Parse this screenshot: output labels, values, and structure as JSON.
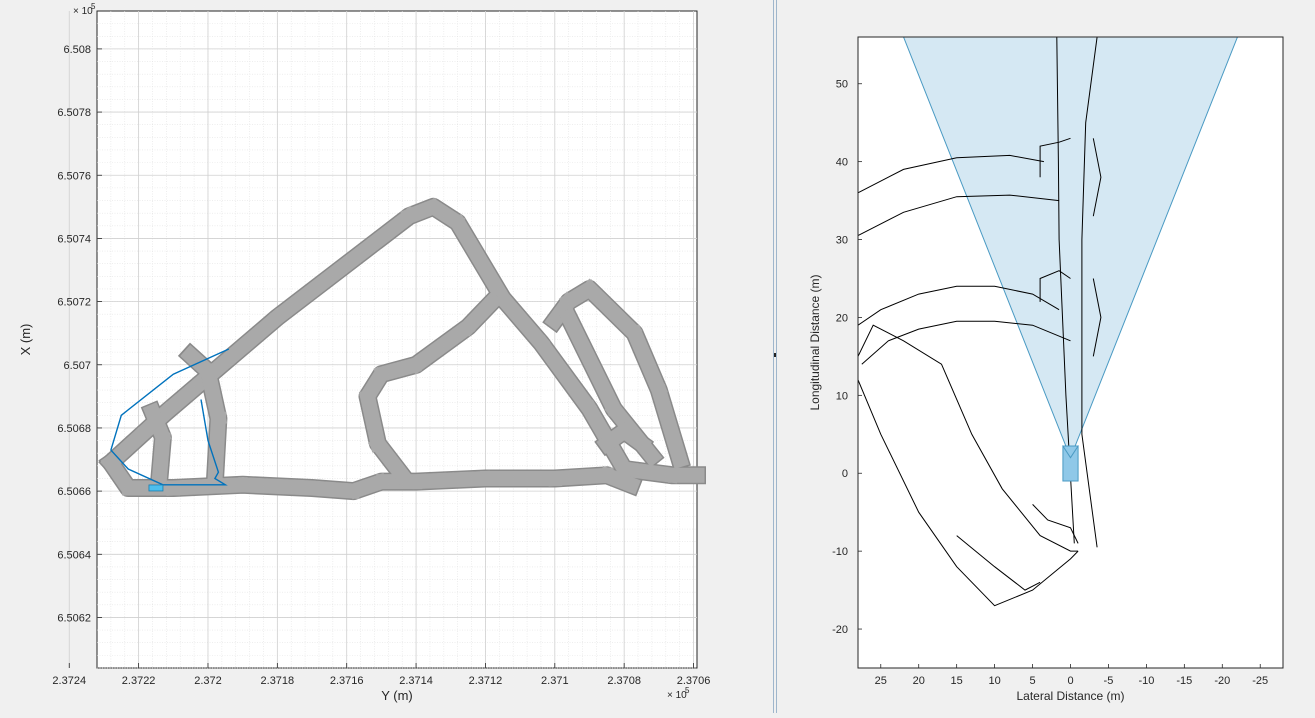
{
  "chart_data": [
    {
      "type": "map",
      "xlabel": "Y (m)",
      "ylabel": "X (m)",
      "x_exponent_label": "× 10",
      "x_exponent_power": "5",
      "y_exponent_label": "× 10",
      "y_exponent_power": "5",
      "x_reversed": true,
      "xlim": [
        2.37232,
        2.37059
      ],
      "ylim": [
        6.50604,
        6.50812
      ],
      "xticks": [
        {
          "value": 2.3724,
          "label": "2.3724"
        },
        {
          "value": 2.3722,
          "label": "2.3722"
        },
        {
          "value": 2.372,
          "label": "2.372"
        },
        {
          "value": 2.3718,
          "label": "2.3718"
        },
        {
          "value": 2.3716,
          "label": "2.3716"
        },
        {
          "value": 2.3714,
          "label": "2.3714"
        },
        {
          "value": 2.3712,
          "label": "2.3712"
        },
        {
          "value": 2.371,
          "label": "2.371"
        },
        {
          "value": 2.3708,
          "label": "2.3708"
        },
        {
          "value": 2.3706,
          "label": "2.3706"
        }
      ],
      "yticks": [
        {
          "value": 6.5062,
          "label": "6.5062"
        },
        {
          "value": 6.5064,
          "label": "6.5064"
        },
        {
          "value": 6.5066,
          "label": "6.5066"
        },
        {
          "value": 6.5068,
          "label": "6.5068"
        },
        {
          "value": 6.507,
          "label": "6.507"
        },
        {
          "value": 6.5072,
          "label": "6.5072"
        },
        {
          "value": 6.5074,
          "label": "6.5074"
        },
        {
          "value": 6.5076,
          "label": "6.5076"
        },
        {
          "value": 6.5078,
          "label": "6.5078"
        },
        {
          "value": 6.508,
          "label": "6.508"
        }
      ],
      "grid": "major and minor",
      "colors": {
        "road": "#a9a9a9",
        "road_edge": "#8a8a8a",
        "path": "#0072bd",
        "vehicle": "#4dbeee"
      },
      "road_network_centerlines": [
        [
          [
            2.37228,
            6.50669
          ],
          [
            2.37212,
            6.50685
          ],
          [
            2.3718,
            6.50715
          ],
          [
            2.37142,
            6.50747
          ],
          [
            2.37135,
            6.5075
          ],
          [
            2.37128,
            6.50745
          ],
          [
            2.37115,
            6.50721
          ],
          [
            2.37104,
            6.50707
          ],
          [
            2.3709,
            6.50686
          ],
          [
            2.3708,
            6.50667
          ],
          [
            2.37066,
            6.50665
          ],
          [
            2.37059,
            6.50665
          ]
        ],
        [
          [
            2.37228,
            6.50669
          ],
          [
            2.37223,
            6.50661
          ],
          [
            2.3721,
            6.50661
          ],
          [
            2.3719,
            6.50662
          ],
          [
            2.3717,
            6.50661
          ],
          [
            2.37158,
            6.5066
          ],
          [
            2.3715,
            6.50663
          ],
          [
            2.3714,
            6.50663
          ],
          [
            2.3712,
            6.50664
          ],
          [
            2.371,
            6.50664
          ],
          [
            2.37085,
            6.50665
          ],
          [
            2.37078,
            6.50662
          ]
        ],
        [
          [
            2.37198,
            6.50663
          ],
          [
            2.37197,
            6.50683
          ],
          [
            2.372,
            6.50698
          ],
          [
            2.37205,
            6.50703
          ]
        ],
        [
          [
            2.37214,
            6.50664
          ],
          [
            2.37213,
            6.50677
          ],
          [
            2.37216,
            6.50685
          ]
        ],
        [
          [
            2.37144,
            6.50665
          ],
          [
            2.37151,
            6.50675
          ],
          [
            2.37154,
            6.5069
          ],
          [
            2.3715,
            6.50697
          ],
          [
            2.3714,
            6.507
          ],
          [
            2.37125,
            6.50712
          ],
          [
            2.37118,
            6.5072
          ]
        ],
        [
          [
            2.371,
            6.50714
          ],
          [
            2.37096,
            6.5072
          ],
          [
            2.3709,
            6.50724
          ],
          [
            2.37077,
            6.5071
          ],
          [
            2.3707,
            6.50692
          ],
          [
            2.37064,
            6.5067
          ]
        ],
        [
          [
            2.37096,
            6.50715
          ],
          [
            2.37083,
            6.50686
          ],
          [
            2.37072,
            6.50671
          ]
        ],
        [
          [
            2.37085,
            6.50675
          ],
          [
            2.3708,
            6.50679
          ],
          [
            2.37075,
            6.50675
          ]
        ]
      ],
      "vehicle_path": [
        [
          2.37194,
          6.50705
        ],
        [
          2.3721,
          6.50697
        ],
        [
          2.37225,
          6.50684
        ],
        [
          2.37228,
          6.50673
        ],
        [
          2.37223,
          6.50667
        ],
        [
          2.37213,
          6.50662
        ],
        [
          2.37195,
          6.50662
        ],
        [
          2.37198,
          6.50664
        ],
        [
          2.37197,
          6.50666
        ],
        [
          2.372,
          6.50676
        ],
        [
          2.37202,
          6.50689
        ]
      ],
      "vehicle_position": [
        2.37215,
        6.50661
      ]
    },
    {
      "type": "line",
      "xlabel": "Lateral Distance (m)",
      "ylabel": "Longitudinal Distance (m)",
      "x_reversed": true,
      "xlim": [
        28,
        -28
      ],
      "ylim": [
        -25,
        56
      ],
      "xticks": [
        25,
        20,
        15,
        10,
        5,
        0,
        -5,
        -10,
        -15,
        -20,
        -25
      ],
      "yticks": [
        -20,
        -10,
        0,
        10,
        20,
        30,
        40,
        50
      ],
      "colors": {
        "sensor_fill": "#d5e8f3",
        "sensor_edge": "#4a9ac3",
        "lane": "#000000",
        "ego_fill": "#8fc8e8"
      },
      "sensor_coverage": [
        [
          0,
          2
        ],
        [
          22,
          56
        ],
        [
          -22,
          56
        ]
      ],
      "ego_vehicle": [
        [
          1,
          -1
        ],
        [
          1,
          3.5
        ],
        [
          -1,
          3.5
        ],
        [
          -1,
          -1
        ]
      ],
      "lane_boundaries": [
        [
          [
            -0.5,
            -9
          ],
          [
            0.6,
            10
          ],
          [
            1.5,
            30
          ],
          [
            1.6,
            40
          ],
          [
            1.8,
            56
          ]
        ],
        [
          [
            -3.5,
            -9.5
          ],
          [
            -1.5,
            5
          ],
          [
            -1.5,
            30
          ],
          [
            -2,
            45
          ],
          [
            -3.5,
            56
          ]
        ],
        [
          [
            28,
            36
          ],
          [
            22,
            39
          ],
          [
            15,
            40.5
          ],
          [
            8,
            40.8
          ],
          [
            3.5,
            40
          ]
        ],
        [
          [
            28,
            30.5
          ],
          [
            22,
            33.5
          ],
          [
            15,
            35.5
          ],
          [
            8,
            35.7
          ],
          [
            1.5,
            35
          ]
        ],
        [
          [
            28,
            19
          ],
          [
            25,
            21
          ],
          [
            20,
            23
          ],
          [
            15,
            24
          ],
          [
            10,
            24
          ],
          [
            5,
            23
          ],
          [
            1.5,
            21
          ]
        ],
        [
          [
            27.5,
            14
          ],
          [
            24,
            17
          ],
          [
            20,
            18.5
          ],
          [
            15,
            19.5
          ],
          [
            10,
            19.5
          ],
          [
            5,
            19
          ],
          [
            0,
            17
          ]
        ],
        [
          [
            28,
            15
          ],
          [
            26,
            19
          ],
          [
            22,
            17
          ],
          [
            17,
            14
          ],
          [
            13,
            5
          ],
          [
            9,
            -2
          ],
          [
            4,
            -8
          ],
          [
            0,
            -10
          ],
          [
            -1,
            -10
          ]
        ],
        [
          [
            28,
            12
          ],
          [
            25,
            5
          ],
          [
            20,
            -5
          ],
          [
            15,
            -12
          ],
          [
            10,
            -17
          ],
          [
            5,
            -15
          ],
          [
            0,
            -11
          ],
          [
            -1,
            -10
          ]
        ],
        [
          [
            4,
            38
          ],
          [
            4,
            42
          ],
          [
            1.5,
            42.5
          ],
          [
            0,
            43
          ]
        ],
        [
          [
            4,
            22
          ],
          [
            4,
            25
          ],
          [
            1.5,
            26
          ],
          [
            0,
            25
          ]
        ],
        [
          [
            5,
            -4
          ],
          [
            3,
            -6
          ],
          [
            0,
            -7
          ],
          [
            -1,
            -9
          ]
        ],
        [
          [
            15,
            -8
          ],
          [
            10,
            -12
          ],
          [
            6,
            -15
          ],
          [
            4,
            -14
          ]
        ],
        [
          [
            -3,
            43
          ],
          [
            -4,
            38
          ],
          [
            -3,
            33
          ]
        ],
        [
          [
            -3,
            25
          ],
          [
            -4,
            20
          ],
          [
            -3,
            15
          ]
        ]
      ]
    }
  ]
}
